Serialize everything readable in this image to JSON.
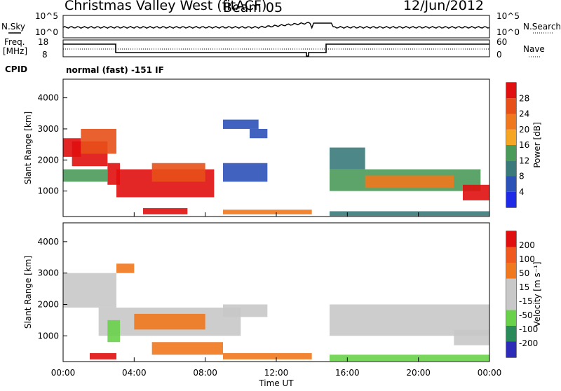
{
  "header": {
    "site": "Christmas Valley West (fitACF)",
    "beam": "Beam 05",
    "date": "12/Jun/2012"
  },
  "meta_panels": {
    "nsky_label": "N.Sky",
    "nsearch_label": "N.Search",
    "noise_ticks": [
      "10^5",
      "10^0"
    ],
    "freq_label_1": "Freq.",
    "freq_label_2": "[MHz]",
    "freq_ticks": [
      "18",
      "8"
    ],
    "nave_label": "Nave",
    "nave_ticks": [
      "60",
      "0"
    ],
    "cpid_label": "CPID",
    "cpid_value": "normal (fast) -151 IF"
  },
  "colors": {
    "power_scale": [
      "#1e2ae6",
      "#2c52b8",
      "#3a7a7a",
      "#4a9a5a",
      "#f5a623",
      "#f0781e",
      "#e8501a",
      "#e01010"
    ],
    "velocity_scale": [
      "#2c2cb8",
      "#2a8a5a",
      "#6ad24a",
      "#c8c8c8",
      "#c8c8c8",
      "#f0781e",
      "#f05a1e",
      "#e01010"
    ]
  },
  "chart_data": [
    {
      "type": "heatmap",
      "title": "",
      "xlabel": "Time UT",
      "ylabel": "Slant Range [km]",
      "x_tick_labels": [
        "00:00",
        "04:00",
        "08:00",
        "12:00",
        "16:00",
        "20:00",
        "00:00"
      ],
      "y_tick_labels": [
        "1000",
        "2000",
        "3000",
        "4000"
      ],
      "ylim": [
        180,
        4600
      ],
      "colorbar": {
        "label": "Power [dB]",
        "ticks": [
          "28",
          "24",
          "20",
          "16",
          "12",
          "8",
          "4"
        ]
      },
      "regions": [
        {
          "t0": 0.0,
          "t1": 1.0,
          "r0": 2100,
          "r1": 2700,
          "level": 7
        },
        {
          "t0": 0.5,
          "t1": 2.5,
          "r0": 1800,
          "r1": 2600,
          "level": 7
        },
        {
          "t0": 1.0,
          "t1": 3.0,
          "r0": 2200,
          "r1": 3000,
          "level": 6
        },
        {
          "t0": 2.5,
          "t1": 3.2,
          "r0": 1200,
          "r1": 1900,
          "level": 7
        },
        {
          "t0": 3.0,
          "t1": 8.5,
          "r0": 800,
          "r1": 1700,
          "level": 7
        },
        {
          "t0": 5.0,
          "t1": 8.0,
          "r0": 1300,
          "r1": 1900,
          "level": 6
        },
        {
          "t0": 0.0,
          "t1": 2.5,
          "r0": 1300,
          "r1": 1700,
          "level": 3
        },
        {
          "t0": 9.0,
          "t1": 11.0,
          "r0": 3000,
          "r1": 3300,
          "level": 1
        },
        {
          "t0": 10.5,
          "t1": 11.5,
          "r0": 2700,
          "r1": 3000,
          "level": 1
        },
        {
          "t0": 9.0,
          "t1": 11.5,
          "r0": 1300,
          "r1": 1900,
          "level": 1
        },
        {
          "t0": 15.0,
          "t1": 23.5,
          "r0": 1000,
          "r1": 1700,
          "level": 3
        },
        {
          "t0": 17.0,
          "t1": 22.0,
          "r0": 1100,
          "r1": 1500,
          "level": 5
        },
        {
          "t0": 22.5,
          "t1": 24.0,
          "r0": 700,
          "r1": 1200,
          "level": 7
        },
        {
          "t0": 15.0,
          "t1": 17.0,
          "r0": 1700,
          "r1": 2400,
          "level": 2
        },
        {
          "t0": 4.5,
          "t1": 7.0,
          "r0": 250,
          "r1": 450,
          "level": 7
        },
        {
          "t0": 9.0,
          "t1": 14.0,
          "r0": 250,
          "r1": 400,
          "level": 5
        },
        {
          "t0": 15.0,
          "t1": 24.0,
          "r0": 200,
          "r1": 350,
          "level": 2
        }
      ]
    },
    {
      "type": "heatmap",
      "title": "",
      "xlabel": "Time UT",
      "ylabel": "Slant Range [km]",
      "x_tick_labels": [
        "00:00",
        "04:00",
        "08:00",
        "12:00",
        "16:00",
        "20:00",
        "00:00"
      ],
      "y_tick_labels": [
        "1000",
        "2000",
        "3000",
        "4000"
      ],
      "ylim": [
        180,
        4600
      ],
      "colorbar": {
        "label": "Velocity [m s⁻¹]",
        "ticks": [
          "200",
          "100",
          "50",
          "15",
          "-15",
          "-50",
          "-100",
          "-200"
        ]
      },
      "regions": [
        {
          "t0": 0.0,
          "t1": 3.0,
          "r0": 1900,
          "r1": 3000,
          "level": 3
        },
        {
          "t0": 2.0,
          "t1": 10.0,
          "r0": 1000,
          "r1": 1900,
          "level": 3
        },
        {
          "t0": 4.0,
          "t1": 8.0,
          "r0": 1200,
          "r1": 1700,
          "level": 5
        },
        {
          "t0": 3.0,
          "t1": 4.0,
          "r0": 3000,
          "r1": 3300,
          "level": 5
        },
        {
          "t0": 9.0,
          "t1": 11.5,
          "r0": 1600,
          "r1": 2000,
          "level": 4
        },
        {
          "t0": 15.0,
          "t1": 24.0,
          "r0": 1000,
          "r1": 2000,
          "level": 3
        },
        {
          "t0": 22.0,
          "t1": 24.0,
          "r0": 700,
          "r1": 1200,
          "level": 3
        },
        {
          "t0": 1.5,
          "t1": 3.0,
          "r0": 250,
          "r1": 450,
          "level": 7
        },
        {
          "t0": 5.0,
          "t1": 9.0,
          "r0": 400,
          "r1": 800,
          "level": 5
        },
        {
          "t0": 9.0,
          "t1": 14.0,
          "r0": 250,
          "r1": 450,
          "level": 5
        },
        {
          "t0": 15.0,
          "t1": 24.0,
          "r0": 200,
          "r1": 400,
          "level": 2
        },
        {
          "t0": 2.5,
          "t1": 3.2,
          "r0": 800,
          "r1": 1500,
          "level": 2
        }
      ]
    }
  ]
}
